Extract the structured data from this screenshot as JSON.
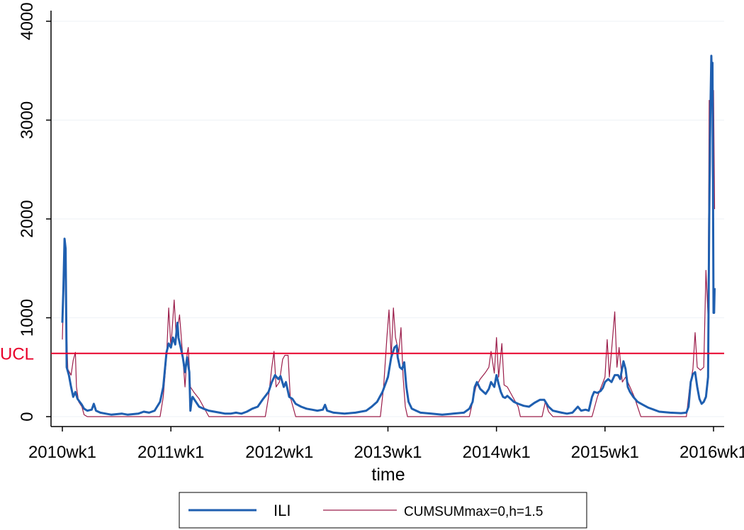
{
  "chart_data": {
    "type": "line",
    "title": "",
    "xlabel": "time",
    "ylabel": "",
    "x_tick_labels": [
      "2010wk1",
      "2011wk1",
      "2012wk1",
      "2013wk1",
      "2014wk1",
      "2015wk1",
      "2016wk1"
    ],
    "x_range_years": [
      2010.0,
      2016.0
    ],
    "ylim": [
      0,
      4000
    ],
    "y_ticks": [
      0,
      1000,
      2000,
      3000,
      4000
    ],
    "grid": "horizontal",
    "legend_position": "bottom",
    "reference_line": {
      "label": "UCL",
      "value": 640,
      "color": "#e8002a"
    },
    "series": [
      {
        "name": "ILI",
        "color": "#1f5fb0",
        "points": [
          [
            2010.0,
            950
          ],
          [
            2010.01,
            1300
          ],
          [
            2010.02,
            1800
          ],
          [
            2010.03,
            1700
          ],
          [
            2010.04,
            500
          ],
          [
            2010.06,
            420
          ],
          [
            2010.08,
            300
          ],
          [
            2010.1,
            200
          ],
          [
            2010.12,
            250
          ],
          [
            2010.14,
            180
          ],
          [
            2010.16,
            150
          ],
          [
            2010.18,
            120
          ],
          [
            2010.2,
            80
          ],
          [
            2010.23,
            60
          ],
          [
            2010.27,
            70
          ],
          [
            2010.29,
            130
          ],
          [
            2010.31,
            60
          ],
          [
            2010.35,
            40
          ],
          [
            2010.4,
            30
          ],
          [
            2010.45,
            20
          ],
          [
            2010.5,
            25
          ],
          [
            2010.55,
            30
          ],
          [
            2010.6,
            20
          ],
          [
            2010.7,
            30
          ],
          [
            2010.75,
            50
          ],
          [
            2010.8,
            40
          ],
          [
            2010.85,
            60
          ],
          [
            2010.9,
            150
          ],
          [
            2010.93,
            300
          ],
          [
            2010.96,
            650
          ],
          [
            2010.98,
            740
          ],
          [
            2011.0,
            700
          ],
          [
            2011.02,
            800
          ],
          [
            2011.04,
            730
          ],
          [
            2011.06,
            950
          ],
          [
            2011.07,
            800
          ],
          [
            2011.09,
            700
          ],
          [
            2011.11,
            600
          ],
          [
            2011.13,
            450
          ],
          [
            2011.15,
            600
          ],
          [
            2011.17,
            450
          ],
          [
            2011.18,
            60
          ],
          [
            2011.19,
            160
          ],
          [
            2011.2,
            200
          ],
          [
            2011.23,
            150
          ],
          [
            2011.26,
            100
          ],
          [
            2011.3,
            80
          ],
          [
            2011.35,
            60
          ],
          [
            2011.4,
            50
          ],
          [
            2011.45,
            40
          ],
          [
            2011.5,
            30
          ],
          [
            2011.55,
            30
          ],
          [
            2011.6,
            40
          ],
          [
            2011.65,
            30
          ],
          [
            2011.7,
            50
          ],
          [
            2011.75,
            80
          ],
          [
            2011.8,
            100
          ],
          [
            2011.85,
            180
          ],
          [
            2011.9,
            250
          ],
          [
            2011.93,
            350
          ],
          [
            2011.96,
            420
          ],
          [
            2011.99,
            380
          ],
          [
            2012.01,
            410
          ],
          [
            2012.04,
            300
          ],
          [
            2012.06,
            350
          ],
          [
            2012.09,
            200
          ],
          [
            2012.12,
            180
          ],
          [
            2012.15,
            130
          ],
          [
            2012.2,
            100
          ],
          [
            2012.25,
            80
          ],
          [
            2012.3,
            70
          ],
          [
            2012.35,
            60
          ],
          [
            2012.4,
            70
          ],
          [
            2012.42,
            120
          ],
          [
            2012.44,
            60
          ],
          [
            2012.5,
            40
          ],
          [
            2012.6,
            30
          ],
          [
            2012.7,
            40
          ],
          [
            2012.8,
            60
          ],
          [
            2012.85,
            100
          ],
          [
            2012.9,
            150
          ],
          [
            2012.95,
            250
          ],
          [
            2013.0,
            400
          ],
          [
            2013.03,
            600
          ],
          [
            2013.06,
            700
          ],
          [
            2013.08,
            720
          ],
          [
            2013.09,
            600
          ],
          [
            2013.11,
            500
          ],
          [
            2013.13,
            480
          ],
          [
            2013.15,
            550
          ],
          [
            2013.17,
            300
          ],
          [
            2013.19,
            150
          ],
          [
            2013.22,
            80
          ],
          [
            2013.26,
            60
          ],
          [
            2013.3,
            40
          ],
          [
            2013.4,
            30
          ],
          [
            2013.5,
            20
          ],
          [
            2013.6,
            30
          ],
          [
            2013.7,
            40
          ],
          [
            2013.75,
            80
          ],
          [
            2013.78,
            150
          ],
          [
            2013.8,
            300
          ],
          [
            2013.82,
            350
          ],
          [
            2013.85,
            280
          ],
          [
            2013.88,
            250
          ],
          [
            2013.9,
            230
          ],
          [
            2013.93,
            280
          ],
          [
            2013.95,
            350
          ],
          [
            2013.98,
            300
          ],
          [
            2014.0,
            420
          ],
          [
            2014.02,
            330
          ],
          [
            2014.04,
            250
          ],
          [
            2014.06,
            200
          ],
          [
            2014.08,
            190
          ],
          [
            2014.1,
            210
          ],
          [
            2014.13,
            180
          ],
          [
            2014.16,
            150
          ],
          [
            2014.2,
            130
          ],
          [
            2014.25,
            110
          ],
          [
            2014.3,
            100
          ],
          [
            2014.35,
            140
          ],
          [
            2014.4,
            170
          ],
          [
            2014.44,
            170
          ],
          [
            2014.48,
            100
          ],
          [
            2014.52,
            60
          ],
          [
            2014.56,
            50
          ],
          [
            2014.6,
            40
          ],
          [
            2014.65,
            30
          ],
          [
            2014.7,
            40
          ],
          [
            2014.75,
            100
          ],
          [
            2014.78,
            60
          ],
          [
            2014.82,
            70
          ],
          [
            2014.85,
            60
          ],
          [
            2014.88,
            200
          ],
          [
            2014.9,
            250
          ],
          [
            2014.93,
            240
          ],
          [
            2014.96,
            260
          ],
          [
            2014.98,
            290
          ],
          [
            2015.0,
            350
          ],
          [
            2015.03,
            380
          ],
          [
            2015.06,
            350
          ],
          [
            2015.09,
            420
          ],
          [
            2015.12,
            420
          ],
          [
            2015.14,
            380
          ],
          [
            2015.17,
            560
          ],
          [
            2015.19,
            480
          ],
          [
            2015.21,
            300
          ],
          [
            2015.23,
            250
          ],
          [
            2015.26,
            200
          ],
          [
            2015.3,
            150
          ],
          [
            2015.35,
            120
          ],
          [
            2015.4,
            90
          ],
          [
            2015.45,
            70
          ],
          [
            2015.5,
            50
          ],
          [
            2015.6,
            40
          ],
          [
            2015.7,
            35
          ],
          [
            2015.75,
            40
          ],
          [
            2015.77,
            100
          ],
          [
            2015.79,
            350
          ],
          [
            2015.81,
            430
          ],
          [
            2015.83,
            450
          ],
          [
            2015.85,
            300
          ],
          [
            2015.87,
            180
          ],
          [
            2015.89,
            130
          ],
          [
            2015.91,
            150
          ],
          [
            2015.93,
            200
          ],
          [
            2015.95,
            400
          ],
          [
            2015.96,
            2000
          ],
          [
            2015.97,
            3000
          ],
          [
            2015.98,
            3650
          ],
          [
            2015.985,
            3400
          ],
          [
            2015.99,
            3580
          ],
          [
            2015.995,
            2400
          ],
          [
            2016.0,
            1050
          ],
          [
            2016.005,
            1050
          ],
          [
            2016.01,
            1300
          ]
        ]
      },
      {
        "name": "CUMSUMmax=0,h=1.5",
        "color": "#9b1d4a",
        "points": [
          [
            2010.0,
            780
          ],
          [
            2010.02,
            1700
          ],
          [
            2010.03,
            1200
          ],
          [
            2010.05,
            480
          ],
          [
            2010.08,
            420
          ],
          [
            2010.1,
            570
          ],
          [
            2010.12,
            650
          ],
          [
            2010.13,
            300
          ],
          [
            2010.15,
            150
          ],
          [
            2010.18,
            100
          ],
          [
            2010.2,
            20
          ],
          [
            2010.23,
            0
          ],
          [
            2010.9,
            0
          ],
          [
            2010.93,
            200
          ],
          [
            2010.96,
            600
          ],
          [
            2010.98,
            1100
          ],
          [
            2011.0,
            700
          ],
          [
            2011.03,
            1180
          ],
          [
            2011.05,
            800
          ],
          [
            2011.08,
            1030
          ],
          [
            2011.11,
            600
          ],
          [
            2011.13,
            300
          ],
          [
            2011.15,
            640
          ],
          [
            2011.16,
            700
          ],
          [
            2011.18,
            300
          ],
          [
            2011.21,
            250
          ],
          [
            2011.26,
            180
          ],
          [
            2011.3,
            100
          ],
          [
            2011.35,
            0
          ],
          [
            2011.87,
            0
          ],
          [
            2011.9,
            200
          ],
          [
            2011.93,
            500
          ],
          [
            2011.95,
            660
          ],
          [
            2011.97,
            300
          ],
          [
            2012.0,
            350
          ],
          [
            2012.03,
            580
          ],
          [
            2012.05,
            620
          ],
          [
            2012.08,
            620
          ],
          [
            2012.1,
            200
          ],
          [
            2012.15,
            0
          ],
          [
            2012.93,
            0
          ],
          [
            2012.96,
            300
          ],
          [
            2012.99,
            800
          ],
          [
            2013.01,
            1080
          ],
          [
            2013.03,
            600
          ],
          [
            2013.05,
            1100
          ],
          [
            2013.07,
            800
          ],
          [
            2013.1,
            650
          ],
          [
            2013.12,
            900
          ],
          [
            2013.14,
            400
          ],
          [
            2013.16,
            100
          ],
          [
            2013.18,
            0
          ],
          [
            2013.75,
            0
          ],
          [
            2013.78,
            150
          ],
          [
            2013.81,
            300
          ],
          [
            2013.85,
            380
          ],
          [
            2013.9,
            450
          ],
          [
            2013.93,
            500
          ],
          [
            2013.95,
            660
          ],
          [
            2013.98,
            440
          ],
          [
            2014.0,
            800
          ],
          [
            2014.02,
            400
          ],
          [
            2014.05,
            740
          ],
          [
            2014.07,
            320
          ],
          [
            2014.1,
            300
          ],
          [
            2014.15,
            200
          ],
          [
            2014.2,
            100
          ],
          [
            2014.22,
            0
          ],
          [
            2014.42,
            0
          ],
          [
            2014.45,
            150
          ],
          [
            2014.48,
            50
          ],
          [
            2014.52,
            0
          ],
          [
            2014.88,
            0
          ],
          [
            2014.93,
            200
          ],
          [
            2015.0,
            400
          ],
          [
            2015.02,
            780
          ],
          [
            2015.04,
            400
          ],
          [
            2015.07,
            800
          ],
          [
            2015.09,
            1060
          ],
          [
            2015.11,
            500
          ],
          [
            2015.13,
            700
          ],
          [
            2015.16,
            350
          ],
          [
            2015.19,
            400
          ],
          [
            2015.23,
            300
          ],
          [
            2015.27,
            200
          ],
          [
            2015.3,
            100
          ],
          [
            2015.33,
            0
          ],
          [
            2015.75,
            0
          ],
          [
            2015.78,
            300
          ],
          [
            2015.81,
            480
          ],
          [
            2015.83,
            850
          ],
          [
            2015.85,
            500
          ],
          [
            2015.88,
            470
          ],
          [
            2015.91,
            500
          ],
          [
            2015.93,
            1480
          ],
          [
            2015.95,
            1000
          ],
          [
            2015.96,
            3200
          ],
          [
            2015.97,
            2400
          ],
          [
            2015.98,
            3650
          ],
          [
            2015.99,
            2800
          ],
          [
            2016.0,
            3300
          ],
          [
            2016.01,
            2100
          ]
        ]
      }
    ]
  }
}
